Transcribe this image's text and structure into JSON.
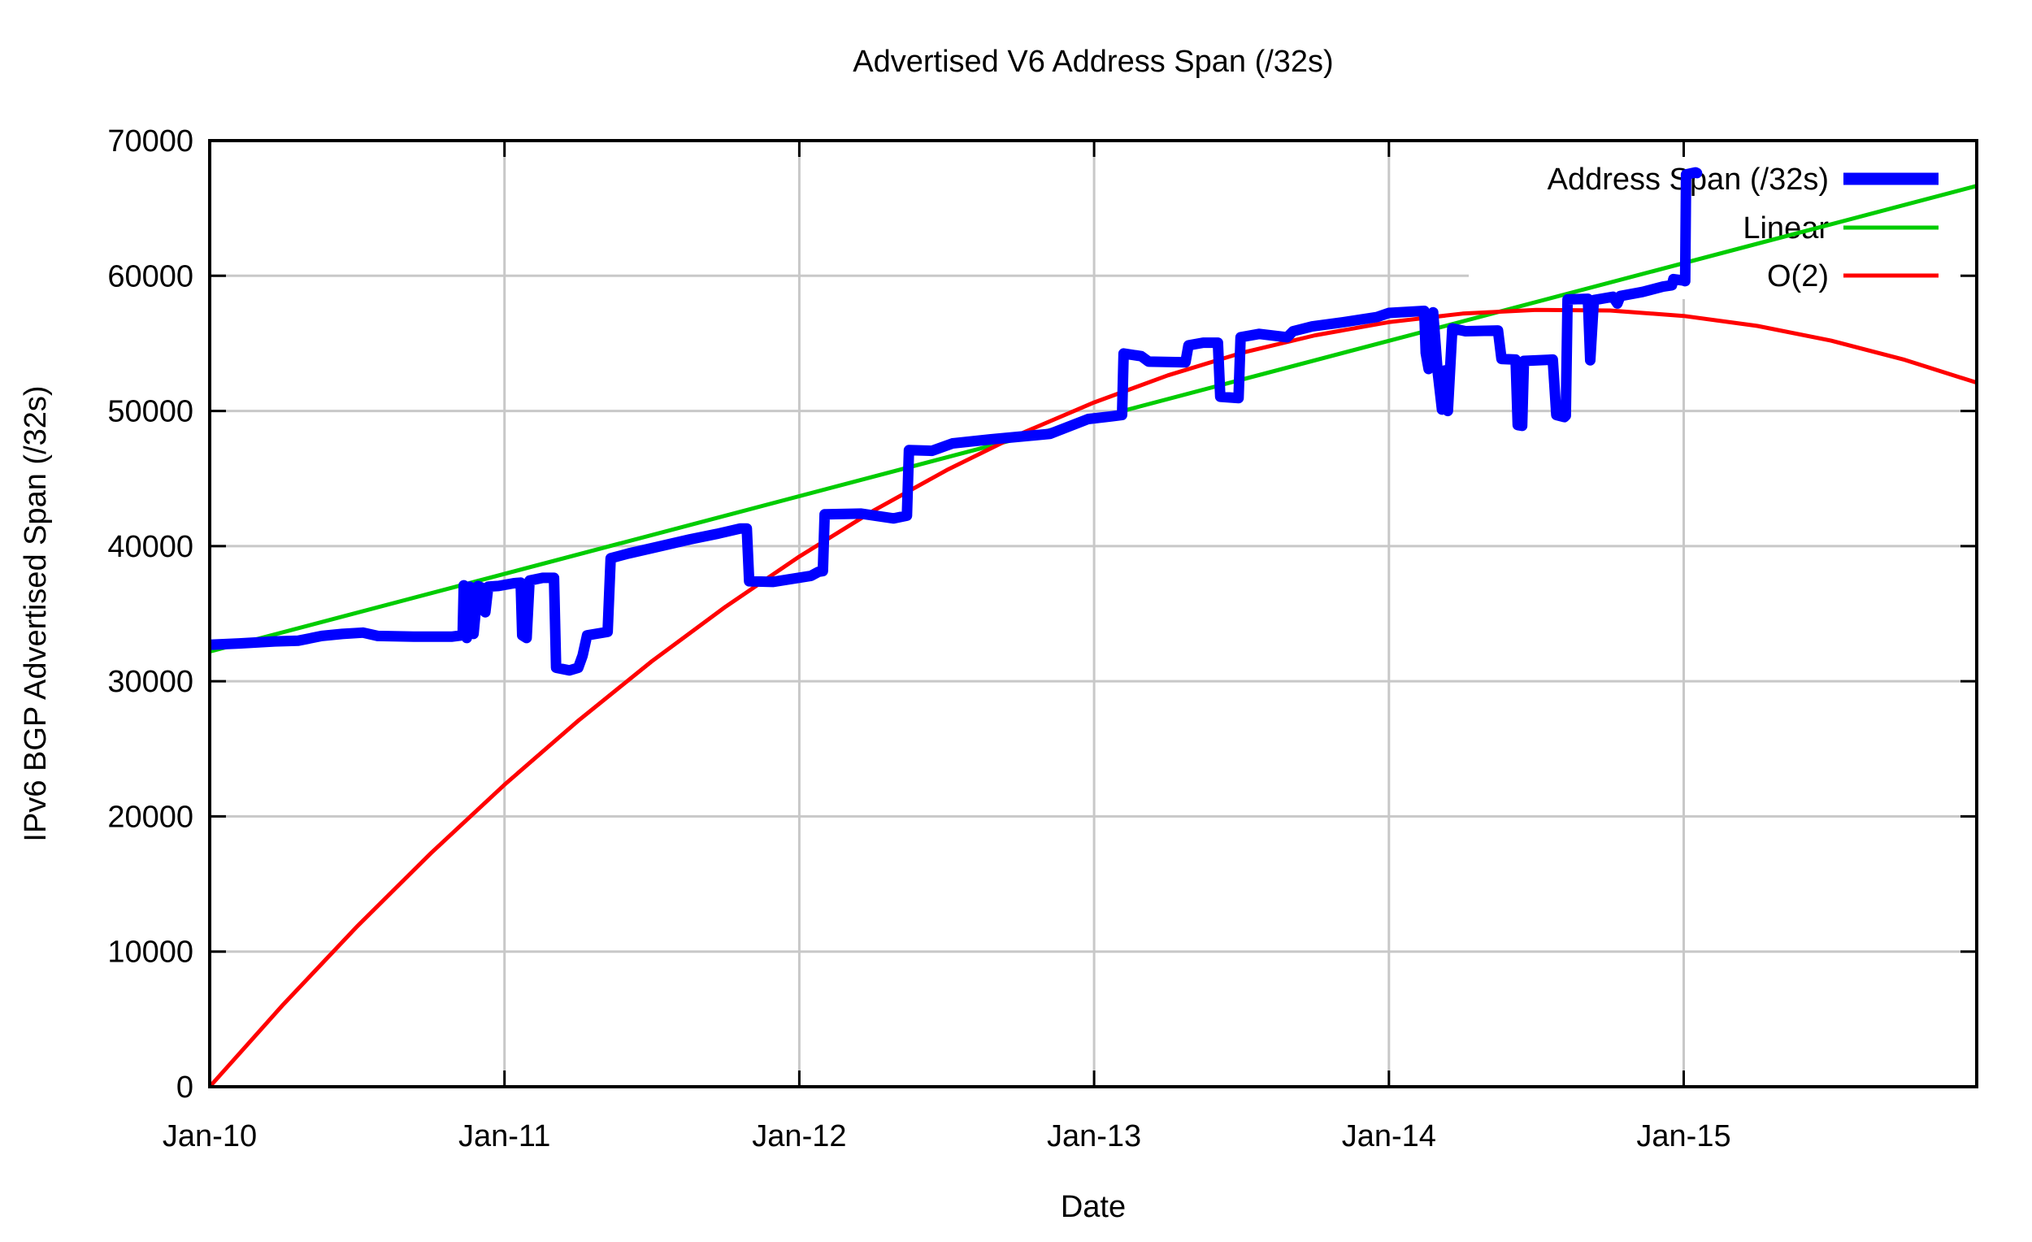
{
  "chart_data": {
    "type": "line",
    "title": "Advertised V6 Address Span (/32s)",
    "xlabel": "Date",
    "ylabel": "IPv6 BGP Advertised Span (/32s)",
    "x_range": [
      2010.0,
      2015.994
    ],
    "y_range": [
      0,
      70000
    ],
    "grid": true,
    "background": "#ffffff",
    "grid_color": "#c8c8c8",
    "border_color": "#000000",
    "x_ticks": [
      {
        "value": 2010,
        "label": "Jan-10"
      },
      {
        "value": 2011,
        "label": "Jan-11"
      },
      {
        "value": 2012,
        "label": "Jan-12"
      },
      {
        "value": 2013,
        "label": "Jan-13"
      },
      {
        "value": 2014,
        "label": "Jan-14"
      },
      {
        "value": 2015,
        "label": "Jan-15"
      }
    ],
    "y_ticks": [
      {
        "value": 0,
        "label": "0"
      },
      {
        "value": 10000,
        "label": "10000"
      },
      {
        "value": 20000,
        "label": "20000"
      },
      {
        "value": 30000,
        "label": "30000"
      },
      {
        "value": 40000,
        "label": "40000"
      },
      {
        "value": 50000,
        "label": "50000"
      },
      {
        "value": 60000,
        "label": "60000"
      },
      {
        "value": 70000,
        "label": "70000"
      }
    ],
    "legend": {
      "position": "top-right",
      "opaque": true,
      "entries": [
        {
          "label": "Address Span (/32s)",
          "color": "#0000ff",
          "sample_width": 15
        },
        {
          "label": "Linear",
          "color": "#00cc00",
          "sample_width": 5
        },
        {
          "label": "O(2)",
          "color": "#ff0000",
          "sample_width": 5
        }
      ]
    },
    "draw_order": [
      "Linear",
      "O(2)",
      "Address Span (/32s)"
    ],
    "series": [
      {
        "name": "Address Span (/32s)",
        "slug": "address-span",
        "color": "#0000ff",
        "stroke_width": 13,
        "points": [
          [
            2010.0,
            32700
          ],
          [
            2010.1,
            32800
          ],
          [
            2010.22,
            32950
          ],
          [
            2010.3,
            33000
          ],
          [
            2010.38,
            33350
          ],
          [
            2010.45,
            33500
          ],
          [
            2010.52,
            33600
          ],
          [
            2010.57,
            33350
          ],
          [
            2010.7,
            33300
          ],
          [
            2010.82,
            33300
          ],
          [
            2010.858,
            33400
          ],
          [
            2010.862,
            37100
          ],
          [
            2010.872,
            33200
          ],
          [
            2010.882,
            37000
          ],
          [
            2010.895,
            33500
          ],
          [
            2010.91,
            37050
          ],
          [
            2010.925,
            36900
          ],
          [
            2010.935,
            35100
          ],
          [
            2010.945,
            37000
          ],
          [
            2010.98,
            37050
          ],
          [
            2011.03,
            37250
          ],
          [
            2011.055,
            37300
          ],
          [
            2011.06,
            33400
          ],
          [
            2011.075,
            33200
          ],
          [
            2011.085,
            37450
          ],
          [
            2011.13,
            37650
          ],
          [
            2011.168,
            37650
          ],
          [
            2011.175,
            31000
          ],
          [
            2011.22,
            30800
          ],
          [
            2011.25,
            31000
          ],
          [
            2011.265,
            31900
          ],
          [
            2011.28,
            33400
          ],
          [
            2011.35,
            33650
          ],
          [
            2011.36,
            39100
          ],
          [
            2011.42,
            39450
          ],
          [
            2011.5,
            39850
          ],
          [
            2011.63,
            40500
          ],
          [
            2011.72,
            40900
          ],
          [
            2011.8,
            41300
          ],
          [
            2011.822,
            41300
          ],
          [
            2011.83,
            37400
          ],
          [
            2011.91,
            37350
          ],
          [
            2012.04,
            37800
          ],
          [
            2012.065,
            38100
          ],
          [
            2012.08,
            38150
          ],
          [
            2012.086,
            42350
          ],
          [
            2012.21,
            42400
          ],
          [
            2012.32,
            42050
          ],
          [
            2012.365,
            42250
          ],
          [
            2012.372,
            47100
          ],
          [
            2012.45,
            47050
          ],
          [
            2012.52,
            47600
          ],
          [
            2012.65,
            47900
          ],
          [
            2012.85,
            48300
          ],
          [
            2012.98,
            49400
          ],
          [
            2013.06,
            49600
          ],
          [
            2013.095,
            49700
          ],
          [
            2013.1,
            54250
          ],
          [
            2013.16,
            54050
          ],
          [
            2013.185,
            53650
          ],
          [
            2013.31,
            53600
          ],
          [
            2013.32,
            54850
          ],
          [
            2013.37,
            55050
          ],
          [
            2013.42,
            55050
          ],
          [
            2013.428,
            51050
          ],
          [
            2013.49,
            50950
          ],
          [
            2013.497,
            55450
          ],
          [
            2013.56,
            55700
          ],
          [
            2013.655,
            55450
          ],
          [
            2013.675,
            55900
          ],
          [
            2013.74,
            56250
          ],
          [
            2013.84,
            56550
          ],
          [
            2013.96,
            56950
          ],
          [
            2014.0,
            57250
          ],
          [
            2014.12,
            57400
          ],
          [
            2014.125,
            54300
          ],
          [
            2014.135,
            53100
          ],
          [
            2014.15,
            57300
          ],
          [
            2014.165,
            53000
          ],
          [
            2014.18,
            50100
          ],
          [
            2014.19,
            53000
          ],
          [
            2014.2,
            50000
          ],
          [
            2014.215,
            56100
          ],
          [
            2014.26,
            55900
          ],
          [
            2014.37,
            55950
          ],
          [
            2014.382,
            53850
          ],
          [
            2014.43,
            53800
          ],
          [
            2014.437,
            48950
          ],
          [
            2014.452,
            48900
          ],
          [
            2014.458,
            53700
          ],
          [
            2014.556,
            53800
          ],
          [
            2014.568,
            49700
          ],
          [
            2014.595,
            49550
          ],
          [
            2014.6,
            49650
          ],
          [
            2014.606,
            58250
          ],
          [
            2014.675,
            58300
          ],
          [
            2014.683,
            53750
          ],
          [
            2014.695,
            58200
          ],
          [
            2014.76,
            58450
          ],
          [
            2014.775,
            57950
          ],
          [
            2014.785,
            58500
          ],
          [
            2014.86,
            58800
          ],
          [
            2014.93,
            59200
          ],
          [
            2014.96,
            59300
          ],
          [
            2014.965,
            59750
          ],
          [
            2014.998,
            59650
          ],
          [
            2015.005,
            59600
          ],
          [
            2015.008,
            67500
          ],
          [
            2015.04,
            67650
          ],
          [
            2015.045,
            67600
          ]
        ]
      },
      {
        "name": "Linear",
        "slug": "linear",
        "color": "#00cc00",
        "stroke_width": 5,
        "points": [
          [
            2010.0,
            32200
          ],
          [
            2015.994,
            66650
          ]
        ]
      },
      {
        "name": "O(2)",
        "slug": "o2",
        "color": "#ff0000",
        "stroke_width": 5,
        "points": [
          [
            2010.0,
            0
          ],
          [
            2010.25,
            6100
          ],
          [
            2010.5,
            11860
          ],
          [
            2010.75,
            17270
          ],
          [
            2011.0,
            22350
          ],
          [
            2011.25,
            27080
          ],
          [
            2011.5,
            31480
          ],
          [
            2011.75,
            35520
          ],
          [
            2012.0,
            39230
          ],
          [
            2012.25,
            42600
          ],
          [
            2012.5,
            45620
          ],
          [
            2012.75,
            48300
          ],
          [
            2013.0,
            50630
          ],
          [
            2013.25,
            52630
          ],
          [
            2013.5,
            54290
          ],
          [
            2013.75,
            55600
          ],
          [
            2014.0,
            56570
          ],
          [
            2014.25,
            57200
          ],
          [
            2014.5,
            57480
          ],
          [
            2014.75,
            57430
          ],
          [
            2015.0,
            57030
          ],
          [
            2015.25,
            56290
          ],
          [
            2015.5,
            55200
          ],
          [
            2015.75,
            53780
          ],
          [
            2015.994,
            52090
          ]
        ]
      }
    ]
  }
}
